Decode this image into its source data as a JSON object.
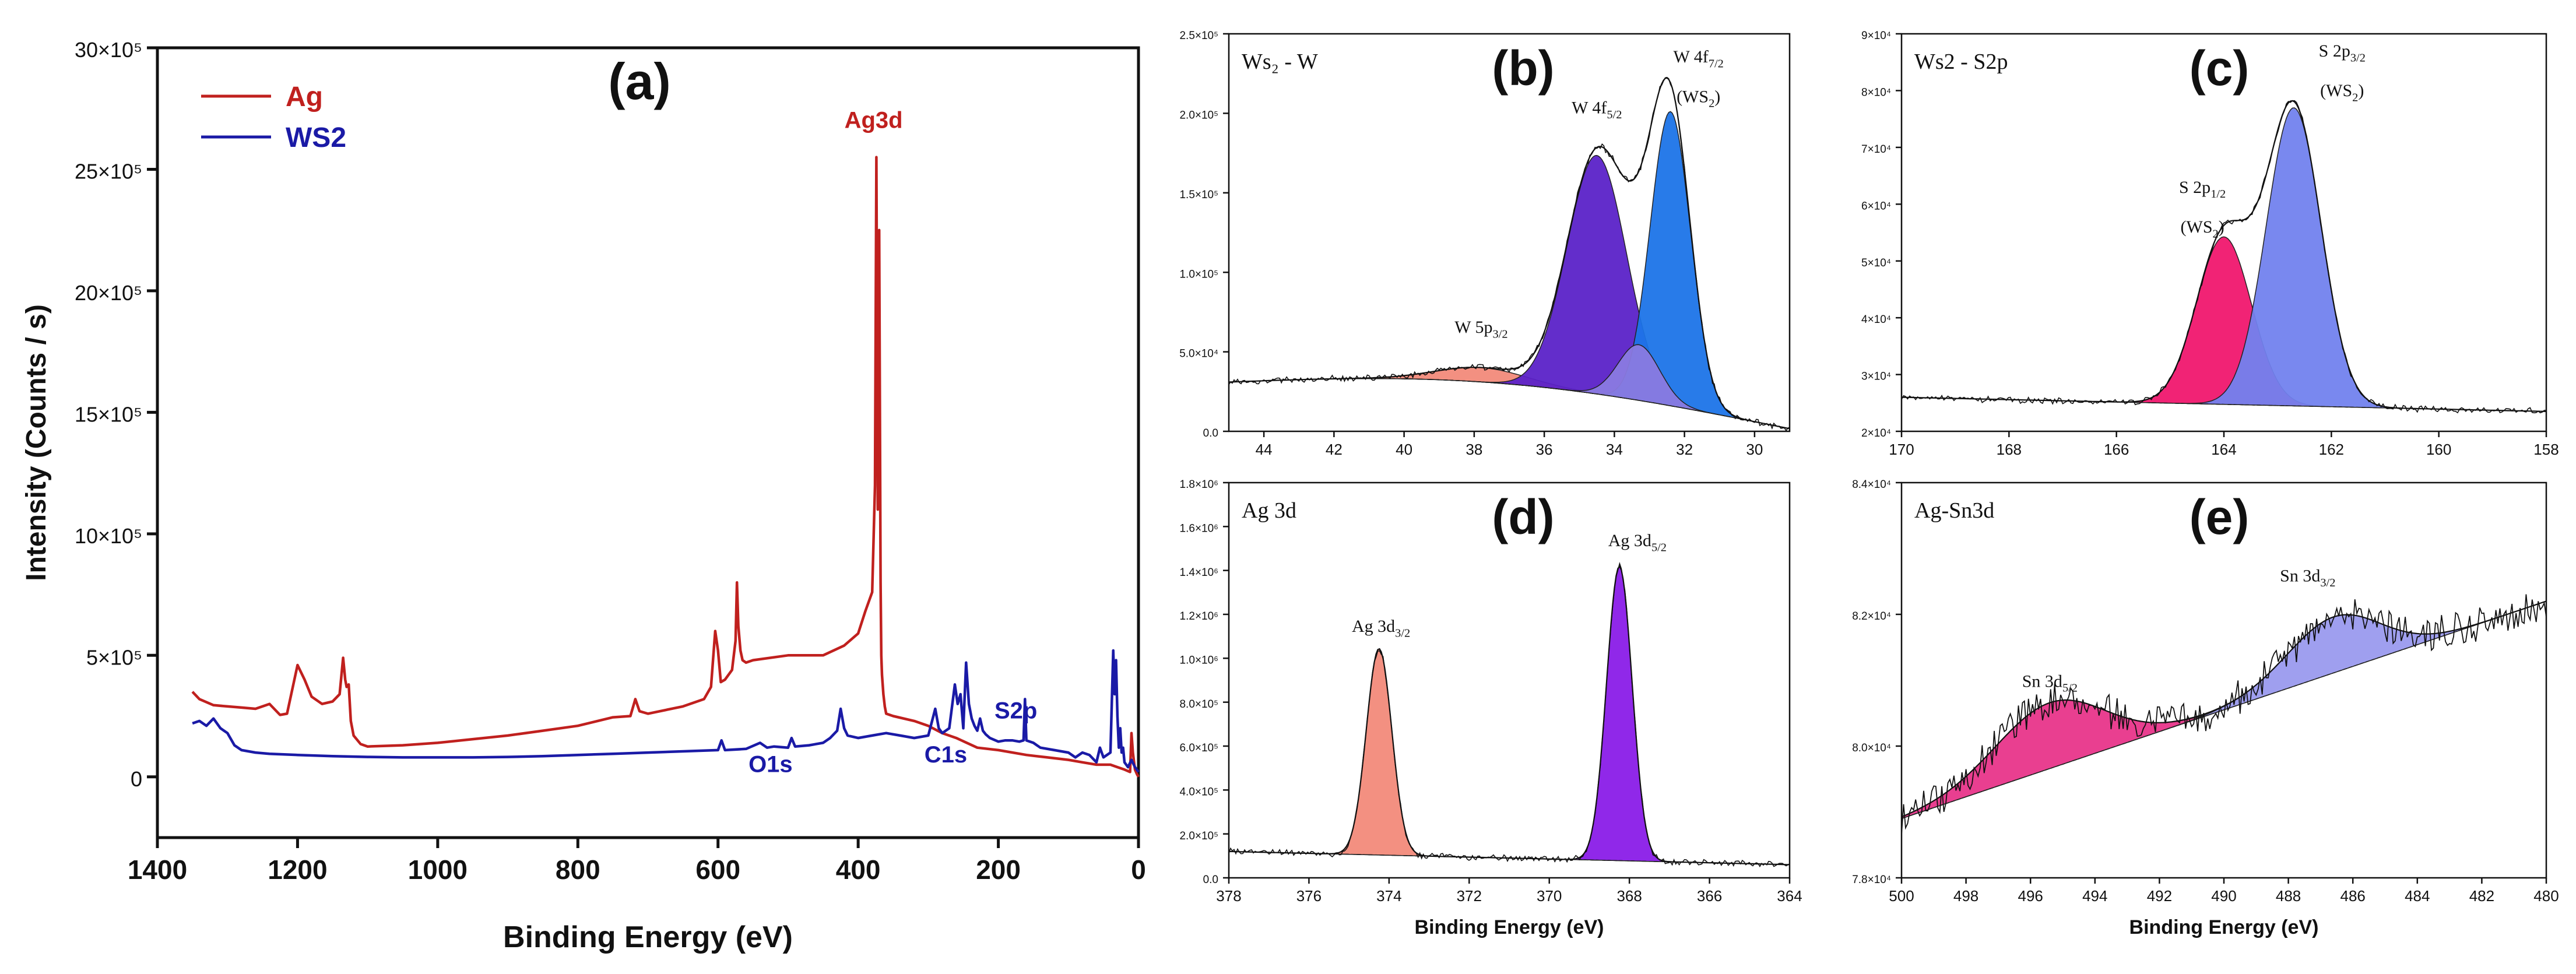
{
  "chart_data": [
    {
      "id": "a",
      "type": "line",
      "panel_label": "(a)",
      "xlabel": "Binding Energy (eV)",
      "ylabel": "Intensity (Counts / s)",
      "xlim": [
        1400,
        0
      ],
      "ylim": [
        -250000,
        3000000
      ],
      "xticks": [
        1400,
        1200,
        1000,
        800,
        600,
        400,
        200,
        0
      ],
      "yticks": [
        {
          "v": 0,
          "label": "0"
        },
        {
          "v": 500000,
          "label": "5×10⁵"
        },
        {
          "v": 1000000,
          "label": "10×10⁵"
        },
        {
          "v": 1500000,
          "label": "15×10⁵"
        },
        {
          "v": 2000000,
          "label": "20×10⁵"
        },
        {
          "v": 2500000,
          "label": "25×10⁵"
        },
        {
          "v": 3000000,
          "label": "30×10⁵"
        }
      ],
      "legend": [
        {
          "name": "Ag",
          "color": "#c0201e"
        },
        {
          "name": "WS2",
          "color": "#1a1aa6"
        }
      ],
      "series": [
        {
          "name": "Ag",
          "color": "#c0201e",
          "x": [
            1350,
            1340,
            1320,
            1300,
            1280,
            1260,
            1240,
            1225,
            1215,
            1200,
            1190,
            1180,
            1165,
            1150,
            1140,
            1135,
            1132,
            1130,
            1127,
            1124,
            1120,
            1110,
            1100,
            1050,
            1000,
            950,
            900,
            850,
            800,
            750,
            725,
            718,
            712,
            700,
            650,
            620,
            610,
            604,
            600,
            596,
            590,
            580,
            575,
            573,
            571,
            568,
            565,
            560,
            550,
            500,
            450,
            420,
            400,
            390,
            380,
            376,
            374,
            372,
            370,
            368,
            367,
            366,
            364,
            362,
            360,
            350,
            320,
            300,
            280,
            260,
            230,
            200,
            160,
            130,
            100,
            80,
            60,
            40,
            30,
            20,
            12,
            10,
            8,
            5,
            2,
            0
          ],
          "y": [
            350000,
            320000,
            295000,
            290000,
            285000,
            280000,
            300000,
            255000,
            260000,
            460000,
            400000,
            330000,
            300000,
            310000,
            340000,
            490000,
            400000,
            370000,
            380000,
            230000,
            170000,
            135000,
            125000,
            130000,
            140000,
            155000,
            170000,
            190000,
            210000,
            245000,
            250000,
            320000,
            270000,
            260000,
            290000,
            320000,
            370000,
            600000,
            520000,
            390000,
            400000,
            440000,
            560000,
            800000,
            620000,
            520000,
            480000,
            470000,
            480000,
            500000,
            500000,
            540000,
            590000,
            680000,
            760000,
            1200000,
            2550000,
            1100000,
            2250000,
            800000,
            500000,
            420000,
            340000,
            290000,
            260000,
            250000,
            230000,
            210000,
            180000,
            160000,
            120000,
            110000,
            90000,
            80000,
            70000,
            60000,
            50000,
            50000,
            40000,
            30000,
            20000,
            180000,
            100000,
            30000,
            10000,
            0
          ]
        },
        {
          "name": "WS2",
          "color": "#1a1aa6",
          "x": [
            1350,
            1340,
            1330,
            1320,
            1310,
            1300,
            1290,
            1280,
            1260,
            1240,
            1200,
            1150,
            1100,
            1050,
            1000,
            950,
            900,
            850,
            800,
            750,
            700,
            650,
            600,
            595,
            590,
            560,
            540,
            530,
            520,
            500,
            495,
            490,
            470,
            450,
            440,
            430,
            425,
            420,
            415,
            400,
            380,
            360,
            340,
            320,
            300,
            290,
            285,
            280,
            270,
            262,
            258,
            254,
            250,
            246,
            242,
            238,
            234,
            230,
            226,
            222,
            218,
            212,
            200,
            190,
            180,
            170,
            164,
            162,
            160,
            150,
            140,
            120,
            100,
            90,
            80,
            70,
            60,
            55,
            50,
            40,
            36,
            34,
            32,
            30,
            28,
            26,
            24,
            22,
            20,
            15,
            10,
            5,
            0
          ],
          "y": [
            220000,
            230000,
            210000,
            240000,
            200000,
            180000,
            130000,
            110000,
            100000,
            95000,
            90000,
            85000,
            82000,
            80000,
            80000,
            80000,
            82000,
            85000,
            90000,
            95000,
            100000,
            105000,
            110000,
            150000,
            110000,
            115000,
            140000,
            120000,
            125000,
            120000,
            160000,
            125000,
            130000,
            140000,
            160000,
            190000,
            280000,
            200000,
            170000,
            160000,
            170000,
            180000,
            170000,
            160000,
            170000,
            280000,
            200000,
            180000,
            200000,
            380000,
            300000,
            340000,
            200000,
            470000,
            300000,
            240000,
            210000,
            190000,
            240000,
            190000,
            175000,
            160000,
            145000,
            150000,
            150000,
            145000,
            150000,
            320000,
            150000,
            140000,
            120000,
            110000,
            100000,
            80000,
            100000,
            90000,
            60000,
            120000,
            80000,
            100000,
            520000,
            340000,
            480000,
            250000,
            120000,
            200000,
            100000,
            120000,
            60000,
            40000,
            70000,
            40000,
            20000
          ]
        }
      ],
      "annotations": [
        {
          "text": "Ag3d",
          "x": 378,
          "y": 2670000,
          "color": "#c0201e"
        },
        {
          "text": "S2p",
          "x": 175,
          "y": 240000,
          "color": "#1a1aa6"
        },
        {
          "text": "O1s",
          "x": 525,
          "y": 20000,
          "color": "#1a1aa6"
        },
        {
          "text": "C1s",
          "x": 275,
          "y": 60000,
          "color": "#1a1aa6"
        }
      ]
    },
    {
      "id": "b",
      "type": "area",
      "panel_label": "(b)",
      "inset_title": "Ws₂ - W",
      "xlim": [
        45,
        29
      ],
      "ylim": [
        0,
        250000
      ],
      "xticks": [
        44,
        42,
        40,
        38,
        36,
        34,
        32,
        30
      ],
      "yticks": [
        {
          "v": 0,
          "label": "0.0"
        },
        {
          "v": 50000,
          "label": "5.0×10⁴"
        },
        {
          "v": 100000,
          "label": "1.0×10⁵"
        },
        {
          "v": 150000,
          "label": "1.5×10⁵"
        },
        {
          "v": 200000,
          "label": "2.0×10⁵"
        },
        {
          "v": 250000,
          "label": "2.5×10⁵"
        }
      ],
      "background": {
        "start": [
          45,
          31000
        ],
        "end": [
          29.3,
          3000
        ],
        "sag": 13000
      },
      "peaks": [
        {
          "name": "W 5p3/2",
          "center": 37.8,
          "amplitude": 9000,
          "fwhm": 3.0,
          "color": "#f28a7a"
        },
        {
          "name": "W 4f5/2",
          "center": 34.5,
          "amplitude": 150000,
          "fwhm": 2.0,
          "color": "#5b22c8"
        },
        {
          "name": "W 4f7/2 (WS2)",
          "center": 32.4,
          "amplitude": 185000,
          "fwhm": 1.35,
          "color": "#1c74e8"
        },
        {
          "name": "shoulder",
          "center": 33.3,
          "amplitude": 35000,
          "fwhm": 1.4,
          "color": "#8a7ae0"
        }
      ],
      "annotations": [
        {
          "text": "W 5p3/2",
          "x": 37.8,
          "y": 62000
        },
        {
          "text": "W 4f5/2",
          "x": 34.5,
          "y": 200000
        },
        {
          "text": "W 4f7/2",
          "x": 31.6,
          "y": 232000
        },
        {
          "text": "(WS2)",
          "x": 31.6,
          "y": 207000
        }
      ]
    },
    {
      "id": "c",
      "type": "area",
      "panel_label": "(c)",
      "inset_title": "Ws2 - S2p",
      "xlim": [
        170,
        158
      ],
      "ylim": [
        20000,
        90000
      ],
      "xticks": [
        170,
        168,
        166,
        164,
        162,
        160,
        158
      ],
      "yticks": [
        {
          "v": 20000,
          "label": "2×10⁴"
        },
        {
          "v": 30000,
          "label": "3×10⁴"
        },
        {
          "v": 40000,
          "label": "4×10⁴"
        },
        {
          "v": 50000,
          "label": "5×10⁴"
        },
        {
          "v": 60000,
          "label": "6×10⁴"
        },
        {
          "v": 70000,
          "label": "7×10⁴"
        },
        {
          "v": 80000,
          "label": "8×10⁴"
        },
        {
          "v": 90000,
          "label": "9×10⁴"
        }
      ],
      "background": {
        "start": [
          170,
          26000
        ],
        "end": [
          158,
          23500
        ],
        "sag": 0
      },
      "peaks": [
        {
          "name": "S 2p1/2 (WS2)",
          "center": 164.0,
          "amplitude": 29500,
          "fwhm": 1.2,
          "color": "#f0176e"
        },
        {
          "name": "S 2p3/2 (WS2)",
          "center": 162.7,
          "amplitude": 52500,
          "fwhm": 1.2,
          "color": "#7282ee"
        }
      ],
      "annotations": [
        {
          "text": "S 2p1/2",
          "x": 164.4,
          "y": 62000
        },
        {
          "text": "(WS2)",
          "x": 164.4,
          "y": 55000
        },
        {
          "text": "S 2p3/2",
          "x": 161.8,
          "y": 86000
        },
        {
          "text": "(WS2)",
          "x": 161.8,
          "y": 79000
        }
      ]
    },
    {
      "id": "d",
      "type": "area",
      "panel_label": "(d)",
      "inset_title": "Ag 3d",
      "xlabel": "Binding Energy (eV)",
      "xlim": [
        378,
        364
      ],
      "ylim": [
        0,
        1800000
      ],
      "xticks": [
        378,
        376,
        374,
        372,
        370,
        368,
        366,
        364
      ],
      "yticks": [
        {
          "v": 0,
          "label": "0.0"
        },
        {
          "v": 200000,
          "label": "2.0×10⁵"
        },
        {
          "v": 400000,
          "label": "4.0×10⁵"
        },
        {
          "v": 600000,
          "label": "6.0×10⁵"
        },
        {
          "v": 800000,
          "label": "8.0×10⁵"
        },
        {
          "v": 1000000,
          "label": "1.0×10⁶"
        },
        {
          "v": 1200000,
          "label": "1.2×10⁶"
        },
        {
          "v": 1400000,
          "label": "1.4×10⁶"
        },
        {
          "v": 1600000,
          "label": "1.6×10⁶"
        },
        {
          "v": 1800000,
          "label": "1.8×10⁶"
        }
      ],
      "background": {
        "start": [
          378,
          120000
        ],
        "end": [
          364,
          60000
        ],
        "sag": 0
      },
      "peaks": [
        {
          "name": "Ag 3d3/2",
          "center": 374.25,
          "amplitude": 940000,
          "fwhm": 0.75,
          "color": "#f28a7a"
        },
        {
          "name": "Ag 3d5/2",
          "center": 368.25,
          "amplitude": 1340000,
          "fwhm": 0.75,
          "color": "#8a1ce8"
        }
      ],
      "annotations": [
        {
          "text": "Ag 3d3/2",
          "x": 374.2,
          "y": 1120000
        },
        {
          "text": "Ag 3d5/2",
          "x": 367.8,
          "y": 1510000
        }
      ]
    },
    {
      "id": "e",
      "type": "area",
      "panel_label": "(e)",
      "inset_title": "Ag-Sn3d",
      "xlabel": "Binding Energy (eV)",
      "xlim": [
        500,
        480
      ],
      "ylim": [
        78000,
        84000
      ],
      "xticks": [
        500,
        498,
        496,
        494,
        492,
        490,
        488,
        486,
        484,
        482,
        480
      ],
      "yticks": [
        {
          "v": 78000,
          "label": "7.8×10⁴"
        },
        {
          "v": 80000,
          "label": "8.0×10⁴"
        },
        {
          "v": 82000,
          "label": "8.2×10⁴"
        },
        {
          "v": 84000,
          "label": "8.4×10⁴"
        }
      ],
      "background": {
        "start": [
          500,
          78900
        ],
        "end": [
          480,
          82200
        ],
        "sag": 0
      },
      "peaks": [
        {
          "name": "Sn 3d5/2",
          "center": 495.4,
          "amplitude": 1000,
          "fwhm": 4.0,
          "color": "#e8358a"
        },
        {
          "name": "Sn 3d3/2",
          "center": 486.6,
          "amplitude": 850,
          "fwhm": 3.4,
          "color": "#9a9aee"
        }
      ],
      "annotations": [
        {
          "text": "Sn 3d5/2",
          "x": 495.4,
          "y": 80900
        },
        {
          "text": "Sn 3d3/2",
          "x": 487.4,
          "y": 82500
        }
      ]
    }
  ]
}
